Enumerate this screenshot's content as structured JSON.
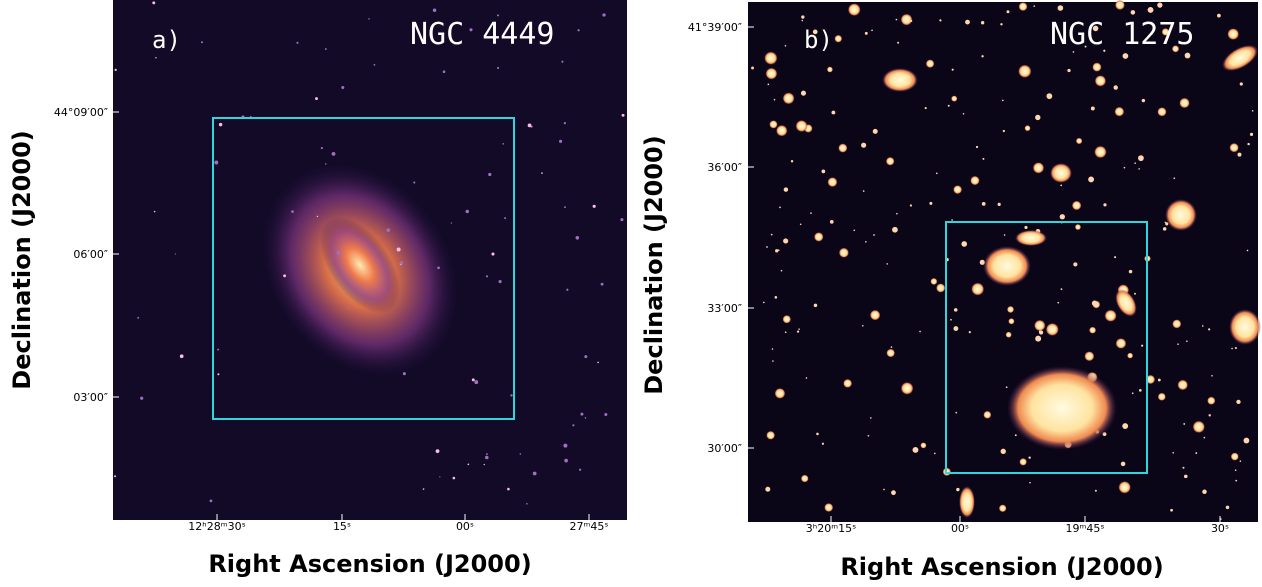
{
  "panels": [
    {
      "label": "a)",
      "object": "NGC 4449",
      "y_axis_label": "Declination (J2000)",
      "x_axis_label": "Right Ascension (J2000)",
      "xticks": [
        "12ʰ28ᵐ30ˢ",
        "15ˢ",
        "00ˢ",
        "27ᵐ45ˢ"
      ],
      "yticks": [
        "44°09′00″",
        "06′00″",
        "03′00″"
      ]
    },
    {
      "label": "b)",
      "object": "NGC 1275",
      "y_axis_label": "Declination (J2000)",
      "x_axis_label": "Right Ascension (J2000)",
      "xticks": [
        "3ʰ20ᵐ15ˢ",
        "00ˢ",
        "19ᵐ45ˢ",
        "30ˢ"
      ],
      "yticks": [
        "41°39′00″",
        "36′00″",
        "33′00″",
        "30′00″"
      ]
    }
  ]
}
